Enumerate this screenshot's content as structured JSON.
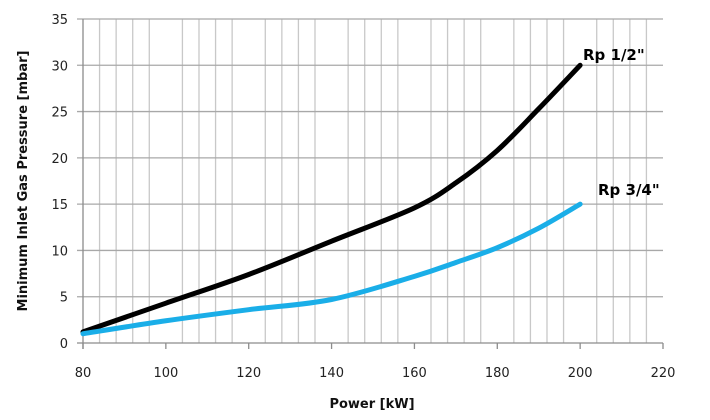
{
  "chart_data": {
    "type": "line",
    "title": "",
    "xlabel": "Power  [kW]",
    "ylabel": "Minimum Inlet Gas Pressure [mbar]",
    "xlim": [
      80,
      220
    ],
    "ylim": [
      0,
      35
    ],
    "x_ticks": [
      80,
      100,
      120,
      140,
      160,
      180,
      200,
      220
    ],
    "y_ticks": [
      0,
      5,
      10,
      15,
      20,
      25,
      30,
      35
    ],
    "grid": true,
    "legend": "inline labels at line ends",
    "x": [
      80,
      100,
      120,
      140,
      160,
      170,
      180,
      190,
      200
    ],
    "series": [
      {
        "name": "Rp 1/2\"",
        "color": "#000000",
        "values": [
          1.2,
          4.3,
          7.4,
          11.0,
          14.6,
          17.3,
          20.8,
          25.3,
          30.0
        ]
      },
      {
        "name": "Rp 3/4\"",
        "color": "#1aaee8",
        "values": [
          1.0,
          2.4,
          3.6,
          4.7,
          7.2,
          8.7,
          10.3,
          12.4,
          15.0
        ]
      }
    ]
  }
}
